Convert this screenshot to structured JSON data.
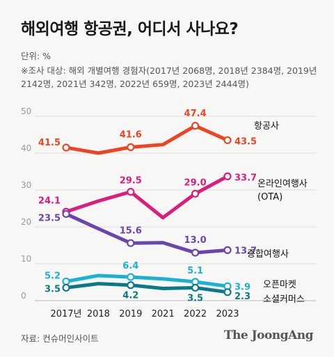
{
  "header": {
    "title": "해외여행 항공권, 어디서 사나요?",
    "unit": "단위: %",
    "note": "※조사 대상: 해외 개별여행 경험자(2017년 2068명, 2018년 2384명, 2019년 2142명, 2021년 342명, 2022년 659명, 2023년 2444명)"
  },
  "footer": {
    "source": "자료: 컨슈머인사이트",
    "brand": "The JoongAng"
  },
  "chart_data": {
    "type": "line",
    "title": "해외여행 항공권, 어디서 사나요?",
    "xlabel": "",
    "ylabel": "",
    "categories": [
      "2017년",
      "2018",
      "2019",
      "2021",
      "2022",
      "2023"
    ],
    "ylim": [
      0,
      50
    ],
    "yticks": [
      "0",
      "10",
      "20",
      "30",
      "40",
      "50"
    ],
    "grid": true,
    "series": [
      {
        "name": "항공사",
        "name_lines": [
          "항공사"
        ],
        "color": "#ee4423",
        "values": [
          41.5,
          40.0,
          41.6,
          42.3,
          47.4,
          43.5
        ],
        "labels": [
          "41.5",
          null,
          "41.6",
          null,
          "47.4",
          "43.5"
        ]
      },
      {
        "name": "온라인여행사 (OTA)",
        "name_lines": [
          "온라인여행사",
          "(OTA)"
        ],
        "color": "#d91e7f",
        "values": [
          24.1,
          27.0,
          29.5,
          22.5,
          29.0,
          33.7
        ],
        "labels": [
          "24.1",
          null,
          "29.5",
          null,
          "29.0",
          "33.7"
        ]
      },
      {
        "name": "종합여행사",
        "name_lines": [
          "종합여행사"
        ],
        "color": "#6a45ad",
        "values": [
          23.5,
          19.5,
          15.6,
          15.7,
          13.0,
          13.7
        ],
        "labels": [
          "23.5",
          null,
          "15.6",
          null,
          "13.0",
          "13.7"
        ]
      },
      {
        "name": "오픈마켓",
        "name_lines": [
          "오픈마켓"
        ],
        "color": "#1bb1d6",
        "values": [
          5.2,
          6.8,
          6.4,
          5.9,
          5.1,
          3.9
        ],
        "labels": [
          "5.2",
          null,
          "6.4",
          null,
          "5.1",
          "3.9"
        ]
      },
      {
        "name": "소셜커머스",
        "name_lines": [
          "소셜커머스"
        ],
        "color": "#0b7a86",
        "values": [
          3.5,
          4.6,
          4.2,
          3.3,
          3.5,
          2.3
        ],
        "labels": [
          "3.5",
          null,
          "4.2",
          null,
          "3.5",
          "2.3"
        ]
      }
    ]
  }
}
